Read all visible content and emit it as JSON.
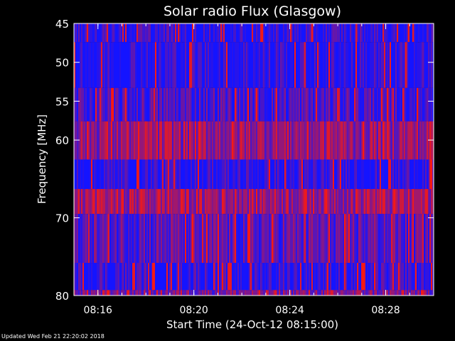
{
  "footer": {
    "updated": "Updated Wed Feb 21 22:20:02 2018"
  },
  "colors": {
    "background": "#000000",
    "axis": "#ffffff",
    "low": "#1414ff",
    "high": "#ff1a0a"
  },
  "chart_data": {
    "type": "heatmap",
    "title": "Solar radio Flux (Glasgow)",
    "xlabel": "Start Time (24-Oct-12 08:15:00)",
    "ylabel": "Frequency [MHz]",
    "xlim": [
      "08:15:00",
      "08:30:00"
    ],
    "ylim": [
      45,
      80
    ],
    "y_inverted": true,
    "xticks": [
      {
        "label": "08:16",
        "value": "08:16:00"
      },
      {
        "label": "08:20",
        "value": "08:20:00"
      },
      {
        "label": "08:24",
        "value": "08:24:00"
      },
      {
        "label": "08:28",
        "value": "08:28:00"
      }
    ],
    "yticks": [
      45,
      50,
      55,
      60,
      70,
      80
    ],
    "bands": [
      {
        "freq": [
          45,
          47.4
        ],
        "mean_intensity": 0.1
      },
      {
        "freq": [
          47.4,
          53.3
        ],
        "mean_intensity": 0.08
      },
      {
        "freq": [
          53.3,
          57.6
        ],
        "mean_intensity": 0.22
      },
      {
        "freq": [
          57.6,
          62.5
        ],
        "mean_intensity": 0.55
      },
      {
        "freq": [
          62.5,
          66.3
        ],
        "mean_intensity": 0.08
      },
      {
        "freq": [
          66.3,
          69.5
        ],
        "mean_intensity": 0.6
      },
      {
        "freq": [
          69.5,
          75.8
        ],
        "mean_intensity": 0.3
      },
      {
        "freq": [
          75.8,
          79.3
        ],
        "mean_intensity": 0.12
      },
      {
        "freq": [
          79.3,
          80
        ],
        "mean_intensity": 0.45
      }
    ],
    "colormap": "blue-red",
    "grid": false
  }
}
